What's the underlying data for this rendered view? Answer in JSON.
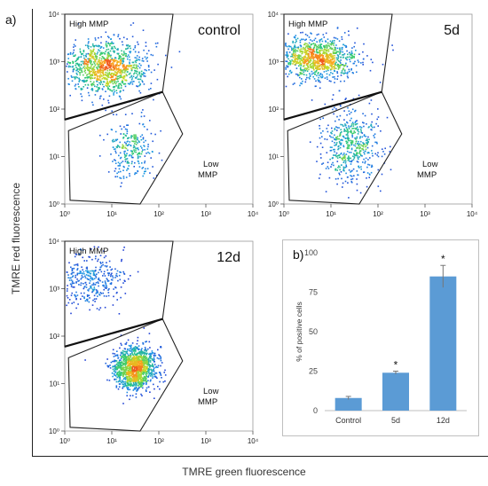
{
  "figure": {
    "panel_a": "a)",
    "panel_b": "b)",
    "y_axis_title": "TMRE red fluorescence",
    "x_axis_title": "TMRE green fluorescence"
  },
  "chart_data": [
    {
      "type": "scatter",
      "title": "control",
      "x_scale": "log",
      "y_scale": "log",
      "xlim": [
        1,
        10000
      ],
      "ylim": [
        1,
        10000
      ],
      "x_ticks": [
        "10⁰",
        "10¹",
        "10²",
        "10³",
        "10⁴"
      ],
      "y_ticks": [
        "10⁰",
        "10¹",
        "10²",
        "10³",
        "10⁴"
      ],
      "gates": [
        {
          "label": "High MMP",
          "polygon": [
            [
              1,
              10000
            ],
            [
              200,
              10000
            ],
            [
              120,
              230
            ],
            [
              1,
              60
            ]
          ]
        },
        {
          "label": "Low MMP",
          "polygon": [
            [
              1.2,
              35
            ],
            [
              120,
              230
            ],
            [
              320,
              30
            ],
            [
              40,
              1
            ],
            [
              1.3,
              1.2
            ]
          ]
        }
      ],
      "populations": [
        {
          "center": [
            7,
            750
          ],
          "spread": [
            0.45,
            0.28
          ],
          "n": 1100
        },
        {
          "center": [
            25,
            14
          ],
          "spread": [
            0.25,
            0.3
          ],
          "n": 260
        }
      ]
    },
    {
      "type": "scatter",
      "title": "5d",
      "x_scale": "log",
      "y_scale": "log",
      "xlim": [
        1,
        10000
      ],
      "ylim": [
        1,
        10000
      ],
      "x_ticks": [
        "10⁰",
        "10¹",
        "10²",
        "10³",
        "10⁴"
      ],
      "y_ticks": [
        "10⁰",
        "10¹",
        "10²",
        "10³",
        "10⁴"
      ],
      "gates": [
        {
          "label": "High MMP",
          "polygon": [
            [
              1,
              10000
            ],
            [
              200,
              10000
            ],
            [
              120,
              230
            ],
            [
              1,
              60
            ]
          ]
        },
        {
          "label": "Low MMP",
          "polygon": [
            [
              1.2,
              35
            ],
            [
              120,
              230
            ],
            [
              320,
              30
            ],
            [
              40,
              1
            ],
            [
              1.3,
              1.2
            ]
          ]
        }
      ],
      "populations": [
        {
          "center": [
            5,
            1200
          ],
          "spread": [
            0.42,
            0.22
          ],
          "n": 1000
        },
        {
          "center": [
            25,
            18
          ],
          "spread": [
            0.3,
            0.38
          ],
          "n": 520
        }
      ]
    },
    {
      "type": "scatter",
      "title": "12d",
      "x_scale": "log",
      "y_scale": "log",
      "xlim": [
        1,
        10000
      ],
      "ylim": [
        1,
        10000
      ],
      "x_ticks": [
        "10⁰",
        "10¹",
        "10²",
        "10³",
        "10⁴"
      ],
      "y_ticks": [
        "10⁰",
        "10¹",
        "10²",
        "10³",
        "10⁴"
      ],
      "gates": [
        {
          "label": "High MMP",
          "polygon": [
            [
              1,
              10000
            ],
            [
              200,
              10000
            ],
            [
              120,
              230
            ],
            [
              1,
              60
            ]
          ]
        },
        {
          "label": "Low MMP",
          "polygon": [
            [
              1.2,
              35
            ],
            [
              120,
              230
            ],
            [
              320,
              30
            ],
            [
              40,
              1
            ],
            [
              1.3,
              1.2
            ]
          ]
        }
      ],
      "populations": [
        {
          "center": [
            3,
            1600
          ],
          "spread": [
            0.4,
            0.28
          ],
          "n": 380
        },
        {
          "center": [
            30,
            22
          ],
          "spread": [
            0.22,
            0.22
          ],
          "n": 1300
        }
      ]
    },
    {
      "type": "bar",
      "categories": [
        "Control",
        "5d",
        "12d"
      ],
      "values": [
        8,
        24,
        85
      ],
      "errors": [
        1,
        1,
        7
      ],
      "significance": [
        "",
        "*",
        "*"
      ],
      "ylabel": "% of positive cells",
      "ylim": [
        0,
        100
      ],
      "y_ticks": [
        0,
        25,
        50,
        75,
        100
      ],
      "color": "#5b9bd5"
    }
  ]
}
